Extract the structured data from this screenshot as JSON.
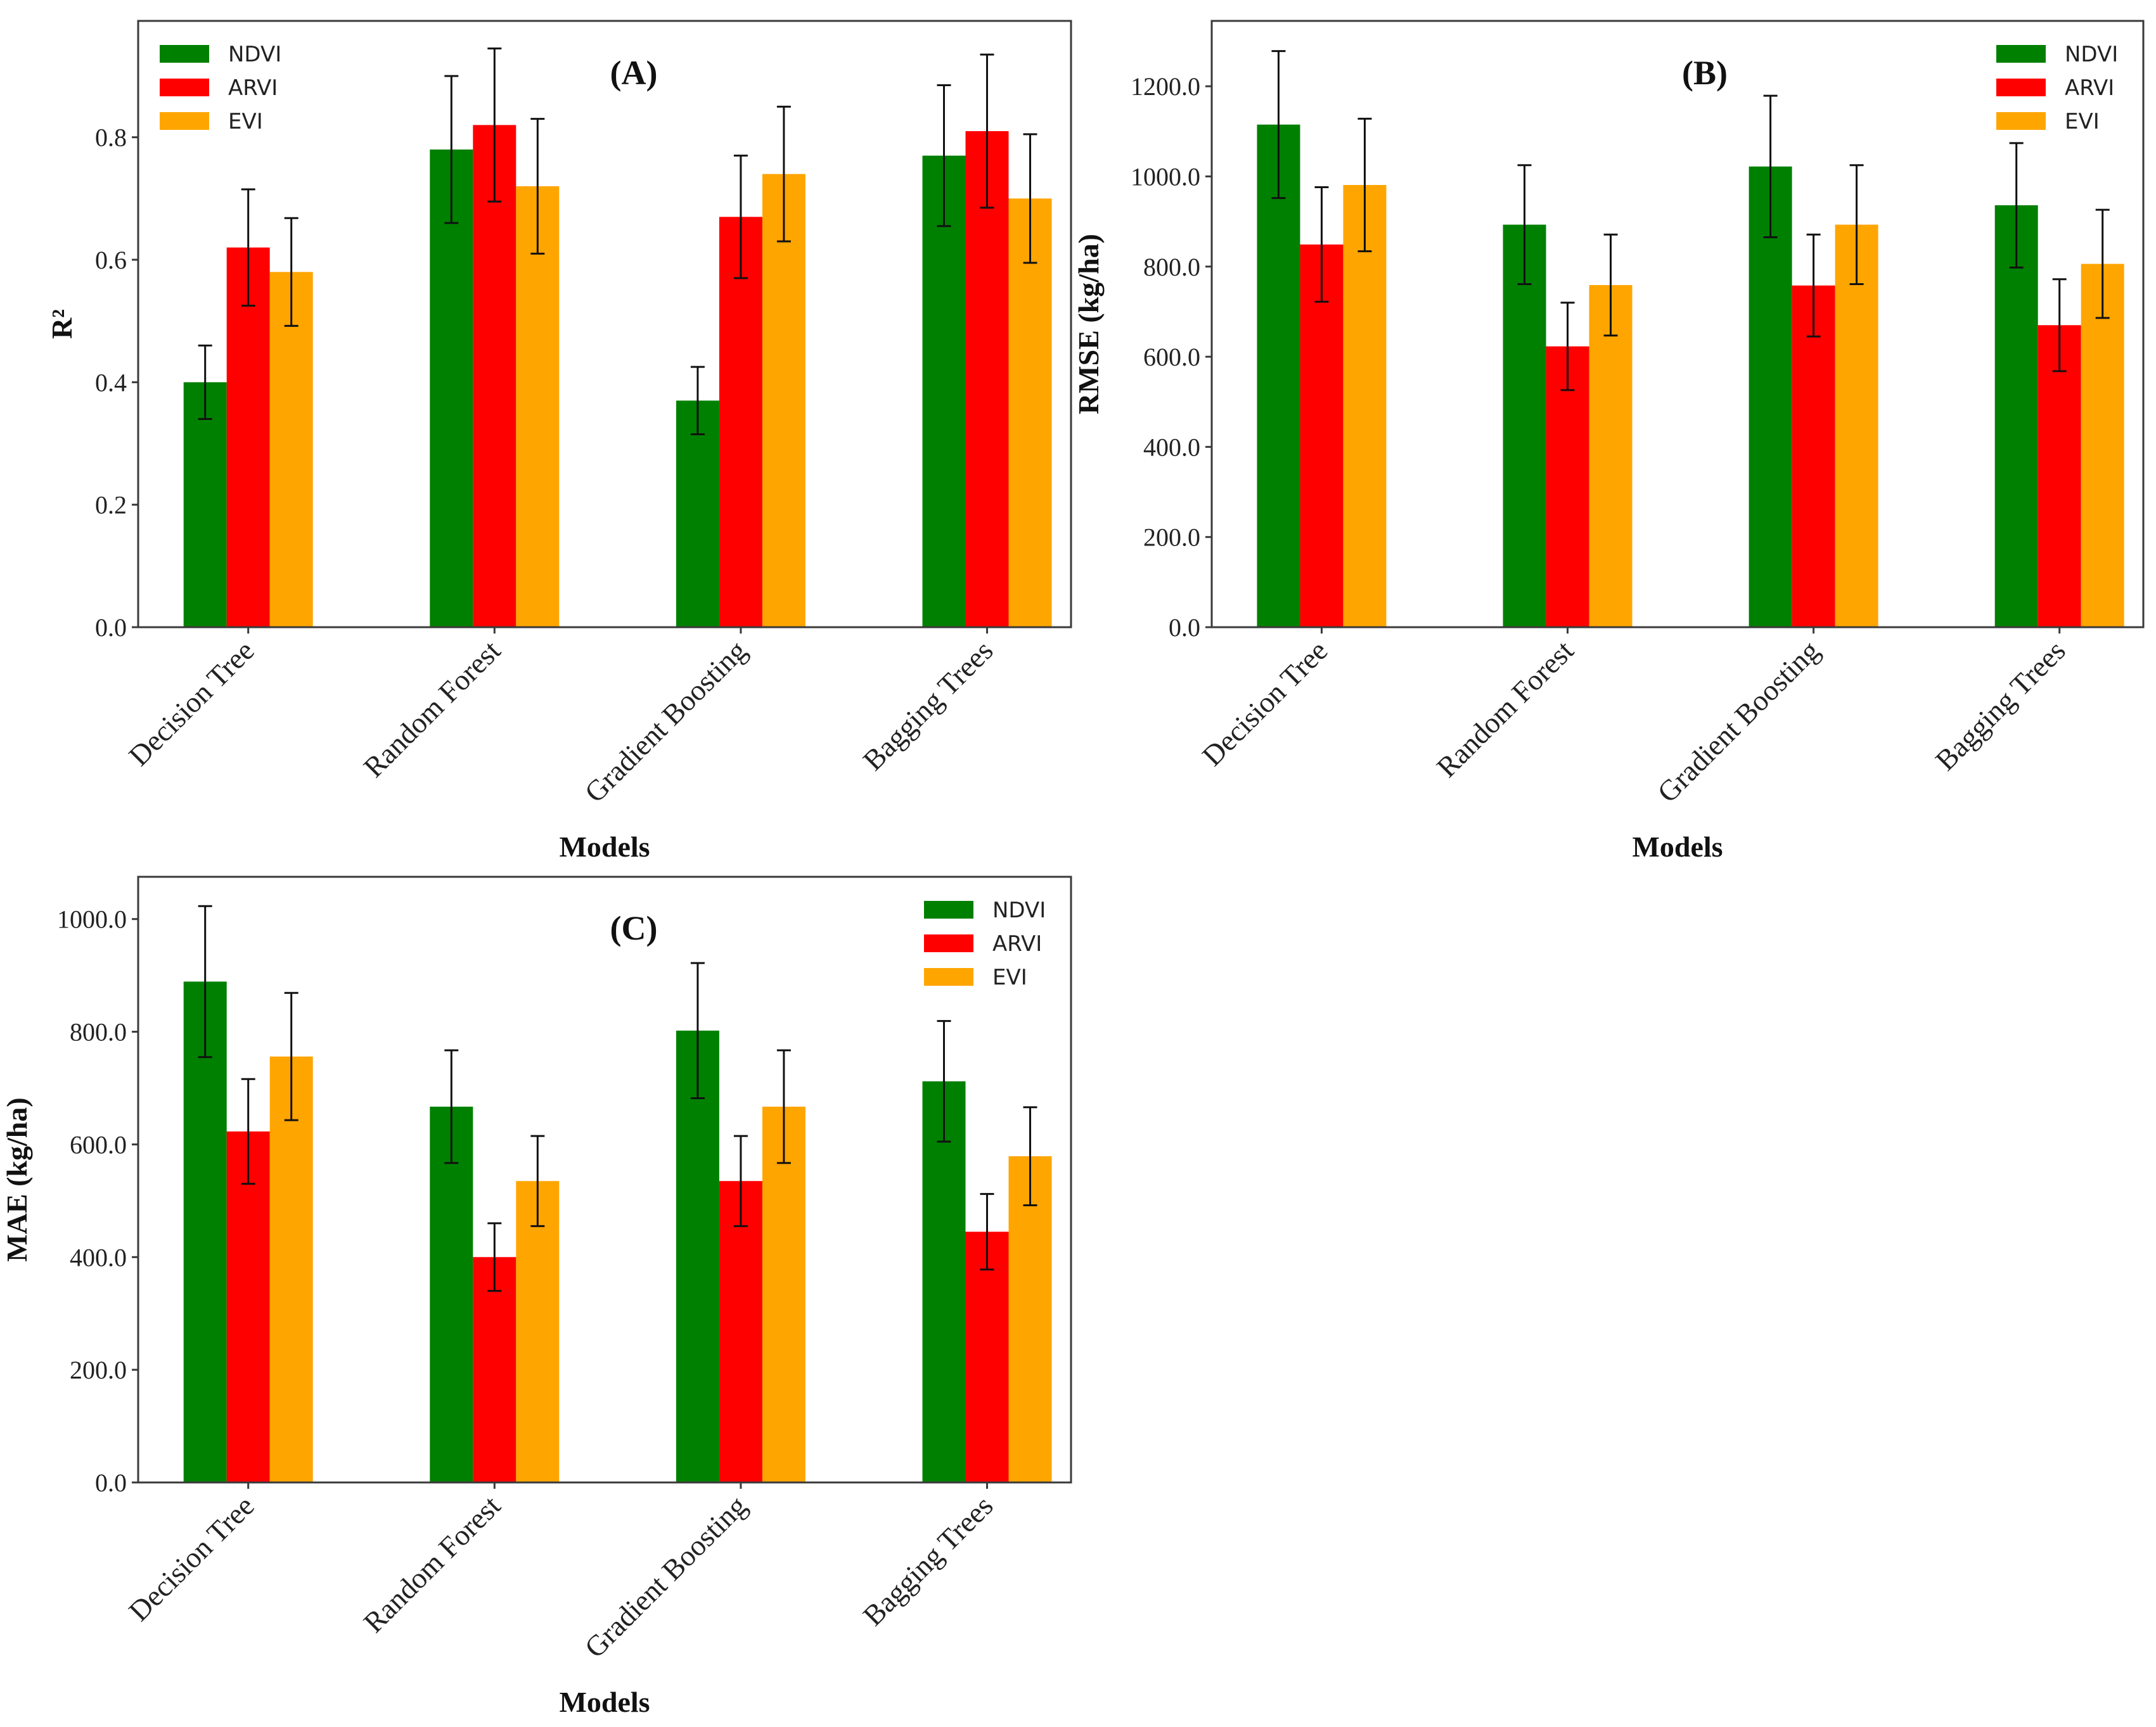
{
  "chart_data": [
    {
      "type": "bar",
      "panel_label": "(A)",
      "categories": [
        "Decision Tree",
        "Random Forest",
        "Gradient Boosting",
        "Bagging Trees"
      ],
      "series": [
        {
          "name": "NDVI",
          "color": "#008000",
          "values": [
            0.4,
            0.78,
            0.37,
            0.77
          ],
          "errors": [
            0.06,
            0.12,
            0.055,
            0.115
          ]
        },
        {
          "name": "ARVI",
          "color": "#ff0000",
          "values": [
            0.62,
            0.82,
            0.67,
            0.81
          ],
          "errors": [
            0.095,
            0.125,
            0.1,
            0.125
          ]
        },
        {
          "name": "EVI",
          "color": "#ffa500",
          "values": [
            0.58,
            0.72,
            0.74,
            0.7
          ],
          "errors": [
            0.088,
            0.11,
            0.11,
            0.105
          ]
        }
      ],
      "xlabel": "Models",
      "ylabel": "R²",
      "ylim": [
        0,
        0.99
      ],
      "yticks": [
        0.0,
        0.2,
        0.4,
        0.6,
        0.8
      ],
      "ytick_labels": [
        "0.0",
        "0.2",
        "0.4",
        "0.6",
        "0.8"
      ],
      "legend_position": "top-left",
      "grid": false
    },
    {
      "type": "bar",
      "panel_label": "(B)",
      "categories": [
        "Decision Tree",
        "Random Forest",
        "Gradient Boosting",
        "Bagging Trees"
      ],
      "series": [
        {
          "name": "NDVI",
          "color": "#008000",
          "values": [
            1115,
            893,
            1022,
            936
          ],
          "errors": [
            163,
            132,
            157,
            138
          ]
        },
        {
          "name": "ARVI",
          "color": "#ff0000",
          "values": [
            849,
            623,
            758,
            670
          ],
          "errors": [
            127,
            97,
            113,
            102
          ]
        },
        {
          "name": "EVI",
          "color": "#ffa500",
          "values": [
            981,
            759,
            893,
            806
          ],
          "errors": [
            147,
            112,
            132,
            120
          ]
        }
      ],
      "xlabel": "Models",
      "ylabel": "RMSE (kg/ha)",
      "ylim": [
        0,
        1345
      ],
      "yticks": [
        0,
        200,
        400,
        600,
        800,
        1000,
        1200
      ],
      "ytick_labels": [
        "0.0",
        "200.0",
        "400.0",
        "600.0",
        "800.0",
        "1000.0",
        "1200.0"
      ],
      "legend_position": "top-right",
      "grid": false
    },
    {
      "type": "bar",
      "panel_label": "(C)",
      "categories": [
        "Decision Tree",
        "Random Forest",
        "Gradient Boosting",
        "Bagging Trees"
      ],
      "series": [
        {
          "name": "NDVI",
          "color": "#008000",
          "values": [
            889,
            667,
            802,
            712
          ],
          "errors": [
            134,
            100,
            120,
            107
          ]
        },
        {
          "name": "ARVI",
          "color": "#ff0000",
          "values": [
            623,
            400,
            535,
            445
          ],
          "errors": [
            93,
            60,
            80,
            67
          ]
        },
        {
          "name": "EVI",
          "color": "#ffa500",
          "values": [
            756,
            535,
            667,
            579
          ],
          "errors": [
            113,
            80,
            100,
            87
          ]
        }
      ],
      "xlabel": "Models",
      "ylabel": "MAE (kg/ha)",
      "ylim": [
        0,
        1075
      ],
      "yticks": [
        0,
        200,
        400,
        600,
        800,
        1000
      ],
      "ytick_labels": [
        "0.0",
        "200.0",
        "400.0",
        "600.0",
        "800.0",
        "1000.0"
      ],
      "legend_position": "top-right",
      "grid": false
    }
  ]
}
